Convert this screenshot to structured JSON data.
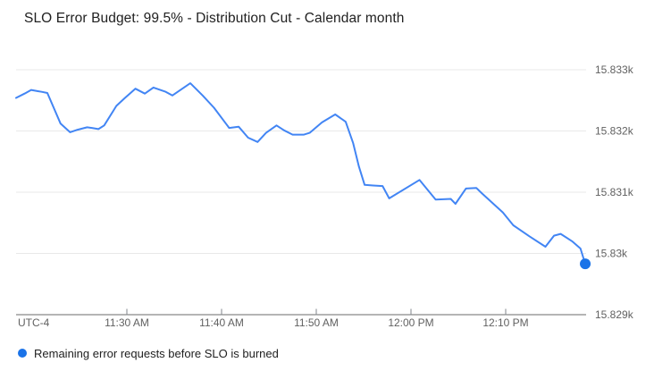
{
  "header": {
    "title": "SLO Error Budget: 99.5% - Distribution Cut - Calendar month"
  },
  "colors": {
    "line": "#4285f4",
    "endpoint_dot": "#1a73e8",
    "legend_marker": "#1a73e8",
    "gridline": "#e9e9e9",
    "axis_line": "#6b6b6b",
    "tick_mark": "#80868b",
    "axis_label_text": "#616161",
    "title_text": "#212121",
    "legend_text": "#212121",
    "background": "#ffffff"
  },
  "chart_data": {
    "type": "line",
    "title": "SLO Error Budget: 99.5% - Distribution Cut - Calendar month",
    "timezone_label": "UTC-4",
    "x_unit": "minutes relative to 11:30 AM (UTC-4)",
    "x_range": [
      -11.7,
      48.4
    ],
    "y_range": [
      15829,
      15833
    ],
    "grid": true,
    "legend_position": "bottom",
    "x_ticks": [
      {
        "m": 0,
        "label": "11:30 AM"
      },
      {
        "m": 10,
        "label": "11:40 AM"
      },
      {
        "m": 20,
        "label": "11:50 AM"
      },
      {
        "m": 30,
        "label": "12:00 PM"
      },
      {
        "m": 40,
        "label": "12:10 PM"
      }
    ],
    "y_ticks": [
      {
        "value": 15833,
        "label": "15.833k"
      },
      {
        "value": 15832,
        "label": "15.832k"
      },
      {
        "value": 15831,
        "label": "15.831k"
      },
      {
        "value": 15830,
        "label": "15.83k"
      },
      {
        "value": 15829,
        "label": "15.829k"
      }
    ],
    "series": [
      {
        "name": "Remaining error requests before SLO is burned",
        "color": "#4285f4",
        "endpoint_marker": true,
        "points": [
          [
            -11.7,
            15832.54
          ],
          [
            -10.8,
            15832.61
          ],
          [
            -10.1,
            15832.67
          ],
          [
            -9.4,
            15832.65
          ],
          [
            -9.0,
            15832.64
          ],
          [
            -8.4,
            15832.62
          ],
          [
            -7.0,
            15832.12
          ],
          [
            -6.0,
            15831.98
          ],
          [
            -5.2,
            15832.02
          ],
          [
            -4.2,
            15832.06
          ],
          [
            -3.7,
            15832.05
          ],
          [
            -3.0,
            15832.03
          ],
          [
            -2.4,
            15832.09
          ],
          [
            -1.1,
            15832.41
          ],
          [
            -0.2,
            15832.54
          ],
          [
            0.9,
            15832.69
          ],
          [
            1.9,
            15832.61
          ],
          [
            2.8,
            15832.71
          ],
          [
            4.1,
            15832.64
          ],
          [
            4.8,
            15832.58
          ],
          [
            6.7,
            15832.78
          ],
          [
            8.0,
            15832.58
          ],
          [
            9.2,
            15832.38
          ],
          [
            10.8,
            15832.05
          ],
          [
            11.8,
            15832.07
          ],
          [
            12.8,
            15831.89
          ],
          [
            13.8,
            15831.82
          ],
          [
            14.7,
            15831.97
          ],
          [
            15.8,
            15832.09
          ],
          [
            16.6,
            15832.01
          ],
          [
            17.5,
            15831.94
          ],
          [
            18.7,
            15831.94
          ],
          [
            19.3,
            15831.97
          ],
          [
            20.6,
            15832.14
          ],
          [
            22.0,
            15832.27
          ],
          [
            23.1,
            15832.15
          ],
          [
            23.9,
            15831.8
          ],
          [
            24.5,
            15831.42
          ],
          [
            25.1,
            15831.12
          ],
          [
            26.0,
            15831.11
          ],
          [
            27.0,
            15831.1
          ],
          [
            27.7,
            15830.9
          ],
          [
            30.9,
            15831.2
          ],
          [
            32.6,
            15830.88
          ],
          [
            34.2,
            15830.89
          ],
          [
            34.7,
            15830.81
          ],
          [
            35.8,
            15831.06
          ],
          [
            36.9,
            15831.07
          ],
          [
            37.5,
            15830.98
          ],
          [
            39.7,
            15830.67
          ],
          [
            40.8,
            15830.46
          ],
          [
            42.5,
            15830.28
          ],
          [
            44.2,
            15830.11
          ],
          [
            45.1,
            15830.29
          ],
          [
            45.8,
            15830.32
          ],
          [
            47.0,
            15830.2
          ],
          [
            47.9,
            15830.08
          ],
          [
            48.4,
            15829.83
          ]
        ]
      }
    ]
  },
  "legend": {
    "label": "Remaining error requests before SLO is burned"
  }
}
